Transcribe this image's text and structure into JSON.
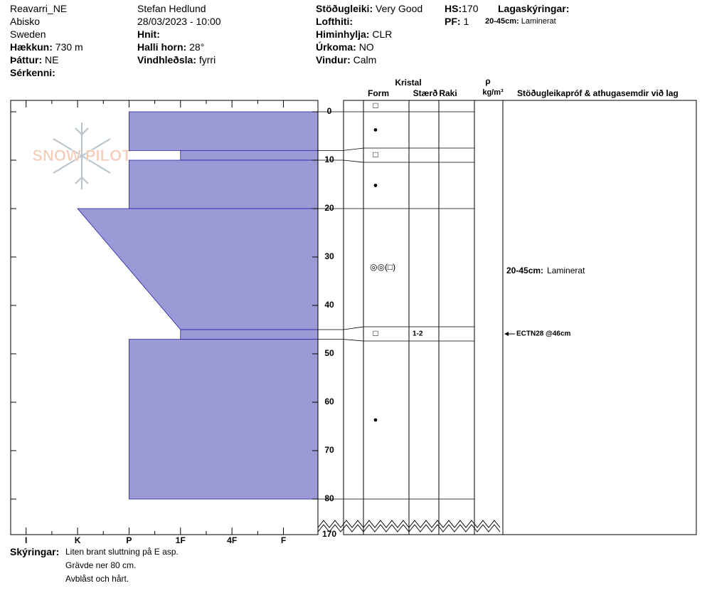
{
  "header": {
    "site": "Reavarri_NE",
    "location": "Abisko",
    "country": "Sweden",
    "elevation": {
      "label": "Hækkun:",
      "value": "730 m"
    },
    "aspect": {
      "label": "Þáttur:",
      "value": "NE"
    },
    "features": {
      "label": "Sérkenni:"
    },
    "observer": "Stefan Hedlund",
    "datetime": "28/03/2023 - 10:00",
    "coordinates": {
      "label": "Hnit:"
    },
    "slope": {
      "label": "Halli horn:",
      "value": "28°"
    },
    "wind_loading": {
      "label": "Vindhleðsla:",
      "value": "fyrri"
    },
    "stability": {
      "label": "Stöðugleiki:",
      "value": "Very Good"
    },
    "air_temp": {
      "label": "Lofthiti:"
    },
    "sky": {
      "label": "Himinhylja:",
      "value": "CLR"
    },
    "precip": {
      "label": "Úrkoma:",
      "value": "NO"
    },
    "wind": {
      "label": "Vindur:",
      "value": "Calm"
    },
    "hs": {
      "label": "HS:",
      "value": 170
    },
    "pf": {
      "label": "PF:",
      "value": "1"
    },
    "layer_notes": {
      "title": "Lagaskýringar:",
      "items": [
        {
          "label": "20-45cm:",
          "value": "Laminerat"
        }
      ]
    }
  },
  "chart_data": {
    "type": "snow-profile",
    "logo": "SNOW PILOT",
    "color": "#9b9ad6",
    "ylim": [
      0,
      80
    ],
    "yticks": [
      0,
      10,
      20,
      30,
      40,
      50,
      60,
      70,
      80
    ],
    "xlim": [
      6.3,
      0.33
    ],
    "xticks": [
      {
        "value": 6,
        "label": "I"
      },
      {
        "value": 5,
        "label": "K"
      },
      {
        "value": 4,
        "label": "P"
      },
      {
        "value": 3,
        "label": "1F"
      },
      {
        "value": 2,
        "label": "4F"
      },
      {
        "value": 1,
        "label": "F"
      }
    ],
    "layers": [
      {
        "top": 0,
        "bottom": 8,
        "hardness_top": 4,
        "hardness_bottom": 4
      },
      {
        "top": 8,
        "bottom": 10,
        "hardness_top": 3,
        "hardness_bottom": 3
      },
      {
        "top": 10,
        "bottom": 20,
        "hardness_top": 4,
        "hardness_bottom": 4
      },
      {
        "top": 20,
        "bottom": 45,
        "hardness_top": 5,
        "hardness_bottom": 3
      },
      {
        "top": 45,
        "bottom": 47,
        "hardness_top": 3,
        "hardness_bottom": 3
      },
      {
        "top": 47,
        "bottom": 80,
        "hardness_top": 4,
        "hardness_bottom": 4
      }
    ],
    "columns": {
      "crystal": "Kristal",
      "form": "Form",
      "size": "Stærð",
      "moisture": "Raki",
      "rho": "ρ",
      "density_unit": "kg/m³",
      "comments": "Stöðugleikapróf & athugasemdir við lag"
    },
    "grains": [
      {
        "form": "□"
      },
      {
        "form": "●"
      },
      {
        "form": "□"
      },
      {
        "form": "●"
      },
      {
        "form": "◎◎(□)"
      },
      {
        "form": "□",
        "size": "1-2"
      },
      {
        "form": "●"
      }
    ],
    "tests": [
      {
        "label": "ECTN28 @46cm",
        "depth": 46
      }
    ]
  },
  "footer": {
    "label": "Skýringar:",
    "lines": [
      "Liten brant sluttning på E asp.",
      "Grävde ner 80 cm.",
      "Avblåst och hårt."
    ]
  }
}
